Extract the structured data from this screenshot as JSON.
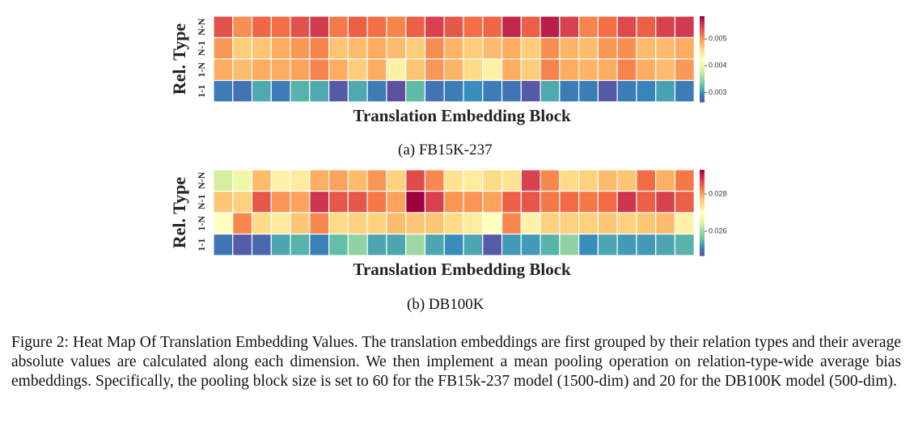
{
  "chart_data": [
    {
      "type": "heatmap",
      "title": "",
      "subtitle": "(a) FB15K-237",
      "xlabel": "Translation Embedding Block",
      "ylabel": "Rel. Type",
      "rows": [
        "N-N",
        "N-1",
        "1-N",
        "1-1"
      ],
      "n_blocks": 25,
      "colormap": "Spectral_r",
      "vmin": 0.00265,
      "vmax": 0.00585,
      "colorbar_ticks": [
        0.003,
        0.004,
        0.005
      ],
      "colorbar_tick_labels": [
        "0.003",
        "0.004",
        "0.005"
      ],
      "values": [
        [
          0.0054,
          0.00505,
          0.00525,
          0.0052,
          0.0054,
          0.00555,
          0.00515,
          0.0053,
          0.0052,
          0.0051,
          0.0053,
          0.0055,
          0.00535,
          0.0052,
          0.00525,
          0.00565,
          0.0053,
          0.0057,
          0.0055,
          0.0051,
          0.0052,
          0.00545,
          0.0053,
          0.0055,
          0.00555
        ],
        [
          0.005,
          0.0047,
          0.00475,
          0.0049,
          0.005,
          0.0051,
          0.00475,
          0.0048,
          0.0049,
          0.0048,
          0.0047,
          0.00505,
          0.00485,
          0.0047,
          0.0048,
          0.0049,
          0.0047,
          0.00505,
          0.00485,
          0.0048,
          0.005,
          0.00505,
          0.0048,
          0.0048,
          0.0049
        ],
        [
          0.0049,
          0.0048,
          0.0049,
          0.0049,
          0.00495,
          0.0051,
          0.0049,
          0.0047,
          0.0049,
          0.0044,
          0.00475,
          0.005,
          0.00485,
          0.0046,
          0.0044,
          0.0049,
          0.0047,
          0.0051,
          0.0049,
          0.00485,
          0.0049,
          0.0051,
          0.0049,
          0.0048,
          0.005
        ],
        [
          0.0029,
          0.00285,
          0.00315,
          0.0029,
          0.0032,
          0.00315,
          0.0027,
          0.00315,
          0.0029,
          0.00265,
          0.00325,
          0.00285,
          0.0029,
          0.003,
          0.0029,
          0.00285,
          0.0027,
          0.00315,
          0.0029,
          0.0029,
          0.0027,
          0.0029,
          0.00295,
          0.0031,
          0.0029
        ]
      ]
    },
    {
      "type": "heatmap",
      "title": "",
      "subtitle": "(b) DB100K",
      "xlabel": "Translation Embedding Block",
      "ylabel": "Rel. Type",
      "rows": [
        "N-N",
        "N-1",
        "1-N",
        "1-1"
      ],
      "n_blocks": 25,
      "colormap": "Spectral_r",
      "vmin": 0.0247,
      "vmax": 0.0293,
      "colorbar_ticks": [
        0.026,
        0.028
      ],
      "colorbar_tick_labels": [
        "0.026",
        "0.028"
      ],
      "values": [
        [
          0.0264,
          0.0267,
          0.0278,
          0.0272,
          0.0273,
          0.0279,
          0.028,
          0.0278,
          0.0281,
          0.0276,
          0.0287,
          0.0282,
          0.0274,
          0.0273,
          0.0275,
          0.0274,
          0.0288,
          0.0282,
          0.0275,
          0.0276,
          0.0278,
          0.0277,
          0.0284,
          0.0279,
          0.0283
        ],
        [
          0.0277,
          0.0276,
          0.0286,
          0.0281,
          0.028,
          0.0289,
          0.0286,
          0.0286,
          0.0283,
          0.028,
          0.0293,
          0.0288,
          0.0281,
          0.0281,
          0.028,
          0.0285,
          0.0286,
          0.0283,
          0.0284,
          0.0283,
          0.0284,
          0.0289,
          0.0285,
          0.0288,
          0.0285
        ],
        [
          0.027,
          0.0282,
          0.0275,
          0.0273,
          0.0277,
          0.0282,
          0.0275,
          0.0276,
          0.0276,
          0.0278,
          0.0277,
          0.0277,
          0.0275,
          0.0273,
          0.027,
          0.0282,
          0.0272,
          0.0276,
          0.0276,
          0.0276,
          0.0277,
          0.0276,
          0.0277,
          0.0278,
          0.0272
        ],
        [
          0.025,
          0.0248,
          0.0249,
          0.0254,
          0.0255,
          0.0251,
          0.0256,
          0.0259,
          0.0254,
          0.0254,
          0.026,
          0.0254,
          0.0252,
          0.0254,
          0.0248,
          0.0253,
          0.0253,
          0.0255,
          0.0259,
          0.0252,
          0.0254,
          0.0253,
          0.0253,
          0.0254,
          0.0255
        ]
      ]
    }
  ],
  "figure_caption": "Figure 2: Heat Map Of Translation Embedding Values. The translation embeddings are first grouped by their relation types and their average absolute values are calculated along each dimension. We then implement a mean pooling operation on relation-type-wide average bias embeddings. Specifically, the pooling block size is set to 60 for the FB15k-237 model (1500-dim) and 20 for the DB100K model (500-dim)."
}
